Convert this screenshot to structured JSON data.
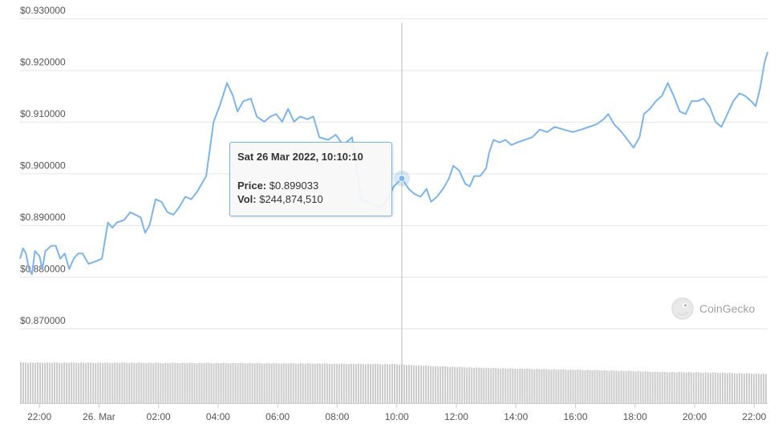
{
  "chart_data": {
    "type": "line",
    "title": "",
    "xlabel": "",
    "ylabel": "",
    "y_ticks": [
      "$0.930000",
      "$0.920000",
      "$0.910000",
      "$0.900000",
      "$0.890000",
      "$0.880000",
      "$0.870000"
    ],
    "y_tick_values": [
      0.93,
      0.92,
      0.91,
      0.9,
      0.89,
      0.88,
      0.87
    ],
    "ylim": [
      0.865,
      0.93
    ],
    "x_ticks": [
      "22:00",
      "26. Mar",
      "02:00",
      "04:00",
      "06:00",
      "08:00",
      "10:00",
      "12:00",
      "14:00",
      "16:00",
      "18:00",
      "20:00",
      "22:00"
    ],
    "x_tick_hours": [
      -2,
      0,
      2,
      4,
      6,
      8,
      10,
      12,
      14,
      16,
      18,
      20,
      22
    ],
    "x_range_hours": [
      -2.65,
      22.45
    ],
    "grid": true,
    "legend": "none",
    "line_color": "#7cb5ec",
    "volume_color": "#cccccc",
    "price_points": [
      [
        -2.65,
        0.8835
      ],
      [
        -2.55,
        0.8855
      ],
      [
        -2.45,
        0.8845
      ],
      [
        -2.35,
        0.8815
      ],
      [
        -2.25,
        0.8805
      ],
      [
        -2.15,
        0.885
      ],
      [
        -2.0,
        0.884
      ],
      [
        -1.9,
        0.8815
      ],
      [
        -1.8,
        0.885
      ],
      [
        -1.6,
        0.886
      ],
      [
        -1.45,
        0.886
      ],
      [
        -1.3,
        0.8835
      ],
      [
        -1.15,
        0.8845
      ],
      [
        -1.0,
        0.8815
      ],
      [
        -0.85,
        0.8835
      ],
      [
        -0.7,
        0.8845
      ],
      [
        -0.55,
        0.8845
      ],
      [
        -0.35,
        0.8825
      ],
      [
        -0.1,
        0.883
      ],
      [
        0.1,
        0.8835
      ],
      [
        0.3,
        0.8905
      ],
      [
        0.45,
        0.8895
      ],
      [
        0.6,
        0.8905
      ],
      [
        0.85,
        0.891
      ],
      [
        1.05,
        0.8925
      ],
      [
        1.4,
        0.8915
      ],
      [
        1.55,
        0.8885
      ],
      [
        1.7,
        0.89
      ],
      [
        1.9,
        0.895
      ],
      [
        2.1,
        0.8945
      ],
      [
        2.3,
        0.8925
      ],
      [
        2.5,
        0.892
      ],
      [
        2.7,
        0.8935
      ],
      [
        2.9,
        0.8955
      ],
      [
        3.1,
        0.895
      ],
      [
        3.3,
        0.8965
      ],
      [
        3.6,
        0.8995
      ],
      [
        3.85,
        0.91
      ],
      [
        4.05,
        0.913
      ],
      [
        4.3,
        0.9175
      ],
      [
        4.5,
        0.915
      ],
      [
        4.65,
        0.912
      ],
      [
        4.85,
        0.914
      ],
      [
        5.1,
        0.9145
      ],
      [
        5.3,
        0.911
      ],
      [
        5.55,
        0.91
      ],
      [
        5.75,
        0.911
      ],
      [
        5.95,
        0.9115
      ],
      [
        6.15,
        0.91
      ],
      [
        6.35,
        0.9125
      ],
      [
        6.55,
        0.91
      ],
      [
        6.75,
        0.911
      ],
      [
        7.0,
        0.9105
      ],
      [
        7.2,
        0.911
      ],
      [
        7.4,
        0.907
      ],
      [
        7.7,
        0.9065
      ],
      [
        7.95,
        0.9075
      ],
      [
        8.2,
        0.9055
      ],
      [
        8.5,
        0.907
      ],
      [
        8.8,
        0.895
      ],
      [
        9.0,
        0.8945
      ],
      [
        9.2,
        0.894
      ],
      [
        9.45,
        0.8935
      ],
      [
        9.7,
        0.895
      ],
      [
        9.9,
        0.8975
      ],
      [
        10.17,
        0.89903
      ],
      [
        10.4,
        0.897
      ],
      [
        10.6,
        0.896
      ],
      [
        10.8,
        0.8955
      ],
      [
        11.0,
        0.897
      ],
      [
        11.15,
        0.8945
      ],
      [
        11.35,
        0.8955
      ],
      [
        11.55,
        0.897
      ],
      [
        11.75,
        0.899
      ],
      [
        11.9,
        0.9015
      ],
      [
        12.1,
        0.9005
      ],
      [
        12.3,
        0.898
      ],
      [
        12.45,
        0.8975
      ],
      [
        12.6,
        0.8995
      ],
      [
        12.8,
        0.8995
      ],
      [
        13.0,
        0.901
      ],
      [
        13.1,
        0.904
      ],
      [
        13.25,
        0.9065
      ],
      [
        13.45,
        0.906
      ],
      [
        13.65,
        0.9065
      ],
      [
        13.85,
        0.9055
      ],
      [
        14.05,
        0.906
      ],
      [
        14.3,
        0.9065
      ],
      [
        14.55,
        0.907
      ],
      [
        14.8,
        0.9085
      ],
      [
        15.05,
        0.908
      ],
      [
        15.3,
        0.909
      ],
      [
        15.6,
        0.9085
      ],
      [
        15.9,
        0.908
      ],
      [
        16.2,
        0.9085
      ],
      [
        16.45,
        0.909
      ],
      [
        16.7,
        0.9095
      ],
      [
        16.95,
        0.9105
      ],
      [
        17.1,
        0.9115
      ],
      [
        17.3,
        0.9095
      ],
      [
        17.55,
        0.908
      ],
      [
        17.75,
        0.9065
      ],
      [
        17.95,
        0.905
      ],
      [
        18.15,
        0.907
      ],
      [
        18.3,
        0.9115
      ],
      [
        18.5,
        0.9125
      ],
      [
        18.7,
        0.914
      ],
      [
        18.9,
        0.915
      ],
      [
        19.1,
        0.9175
      ],
      [
        19.3,
        0.915
      ],
      [
        19.5,
        0.912
      ],
      [
        19.7,
        0.9115
      ],
      [
        19.9,
        0.914
      ],
      [
        20.1,
        0.914
      ],
      [
        20.3,
        0.9145
      ],
      [
        20.5,
        0.913
      ],
      [
        20.7,
        0.91
      ],
      [
        20.9,
        0.909
      ],
      [
        21.1,
        0.9115
      ],
      [
        21.3,
        0.914
      ],
      [
        21.5,
        0.9155
      ],
      [
        21.7,
        0.915
      ],
      [
        21.9,
        0.914
      ],
      [
        22.05,
        0.913
      ],
      [
        22.2,
        0.9165
      ],
      [
        22.35,
        0.9215
      ],
      [
        22.45,
        0.9235
      ]
    ],
    "volume_levels": [
      [
        -2.65,
        1.0
      ],
      [
        4.0,
        0.99
      ],
      [
        7.0,
        0.98
      ],
      [
        10.0,
        0.96
      ],
      [
        11.0,
        0.92
      ],
      [
        13.0,
        0.87
      ],
      [
        15.0,
        0.84
      ],
      [
        17.0,
        0.81
      ],
      [
        19.0,
        0.77
      ],
      [
        21.0,
        0.75
      ],
      [
        22.45,
        0.72
      ]
    ],
    "hover": {
      "hour": 10.17,
      "price": 0.899033
    }
  },
  "tooltip": {
    "title": "Sat 26 Mar 2022, 10:10:10",
    "price_label": "Price:",
    "price_value": "$0.899033",
    "vol_label": "Vol:",
    "vol_value": "$244,874,510"
  },
  "watermark": {
    "text": "CoinGecko",
    "icon": "gecko-logo-icon"
  }
}
